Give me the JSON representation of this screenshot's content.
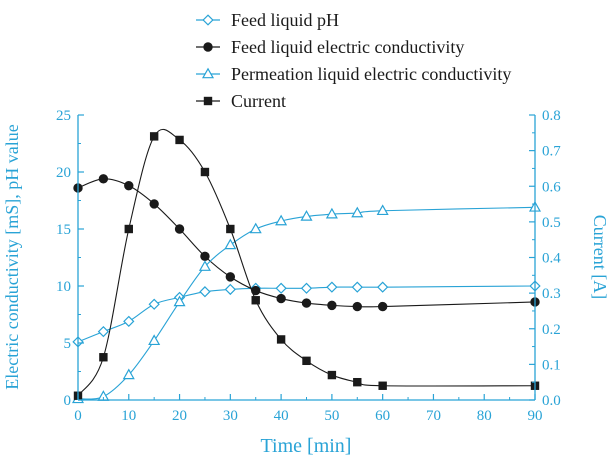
{
  "chart_data": {
    "type": "line",
    "xlabel": "Time [min]",
    "ylabel_left": "Electric conductivity [mS], pH value",
    "ylabel_right": "Current [A]",
    "xlim": [
      0,
      90
    ],
    "ylim_left": [
      0,
      25
    ],
    "ylim_right": [
      0,
      0.8
    ],
    "x_ticks": [
      0,
      10,
      20,
      30,
      40,
      50,
      60,
      70,
      80,
      90
    ],
    "y_left_ticks": [
      0,
      5,
      10,
      15,
      20,
      25
    ],
    "y_right_ticks": [
      "0.0",
      "0.1",
      "0.2",
      "0.3",
      "0.4",
      "0.5",
      "0.6",
      "0.7",
      "0.8"
    ],
    "grid": false,
    "legend_position": "top",
    "colors": {
      "axis_accent": "#29a3d6",
      "ink": "#1a1a1a"
    },
    "series": [
      {
        "name": "Feed liquid pH",
        "axis": "left",
        "marker": "diamond-open",
        "color": "#29a3d6",
        "x": [
          0,
          5,
          10,
          15,
          20,
          25,
          30,
          35,
          40,
          45,
          50,
          55,
          60,
          90
        ],
        "y": [
          5.1,
          6.0,
          6.9,
          8.4,
          9.0,
          9.5,
          9.7,
          9.8,
          9.8,
          9.8,
          9.9,
          9.9,
          9.9,
          10.0
        ]
      },
      {
        "name": "Feed liquid electric conductivity",
        "axis": "left",
        "marker": "circle-filled",
        "color": "#1a1a1a",
        "x": [
          0,
          5,
          10,
          15,
          20,
          25,
          30,
          35,
          40,
          45,
          50,
          55,
          60,
          90
        ],
        "y": [
          18.6,
          19.4,
          18.8,
          17.2,
          15.0,
          12.6,
          10.8,
          9.6,
          8.9,
          8.5,
          8.3,
          8.2,
          8.2,
          8.6
        ]
      },
      {
        "name": "Permeation liquid electric conductivity",
        "axis": "left",
        "marker": "triangle-open",
        "color": "#29a3d6",
        "x": [
          0,
          5,
          10,
          15,
          20,
          25,
          30,
          35,
          40,
          45,
          50,
          55,
          60,
          90
        ],
        "y": [
          0.1,
          0.3,
          2.2,
          5.2,
          8.6,
          11.7,
          13.6,
          15.0,
          15.7,
          16.1,
          16.3,
          16.4,
          16.6,
          16.9
        ]
      },
      {
        "name": "Current",
        "axis": "right",
        "marker": "square-filled",
        "color": "#1a1a1a",
        "x": [
          0,
          5,
          10,
          15,
          20,
          25,
          30,
          35,
          40,
          45,
          50,
          55,
          60,
          90
        ],
        "y": [
          0.012,
          0.12,
          0.48,
          0.74,
          0.73,
          0.64,
          0.48,
          0.28,
          0.17,
          0.11,
          0.07,
          0.05,
          0.04,
          0.04
        ]
      }
    ]
  }
}
